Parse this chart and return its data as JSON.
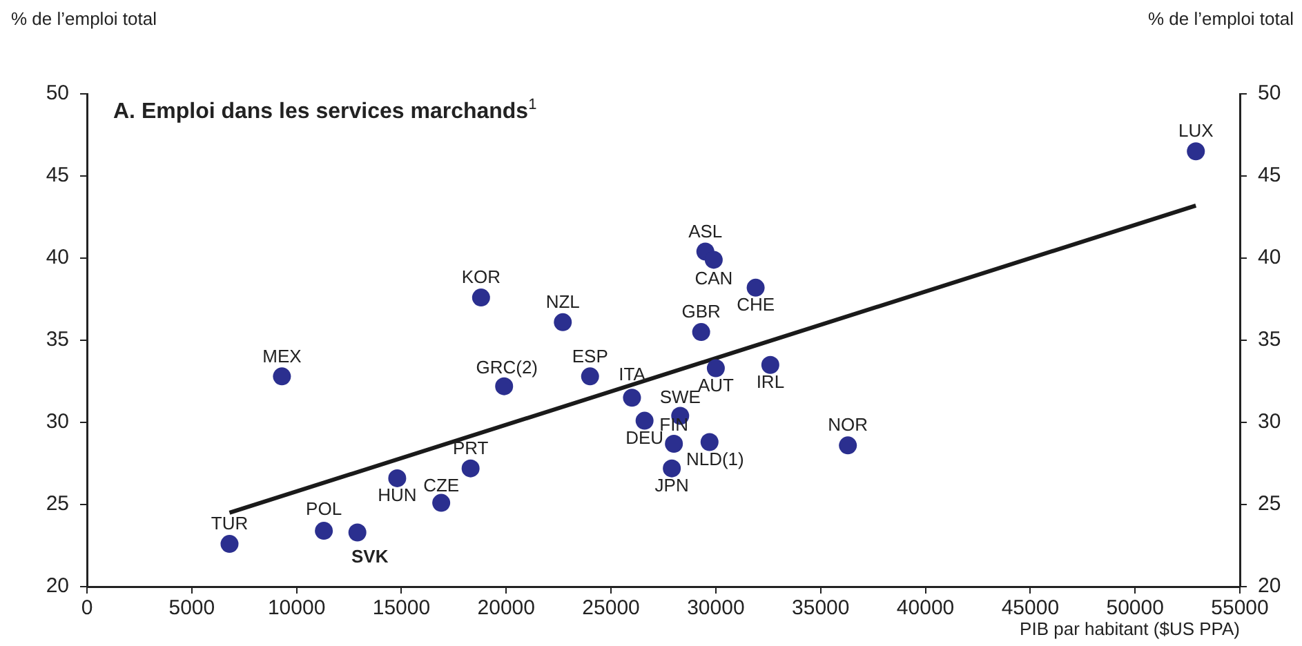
{
  "chart_data": {
    "type": "scatter",
    "title": "A. Emploi dans les services marchands$^{1}$",
    "xlabel": "PIB par habitant ($US PPA)",
    "ylabel": "% de l’emploi total",
    "y2label": "% de l’emploi total",
    "xlim": [
      0,
      55000
    ],
    "xticks": [
      0,
      5000,
      10000,
      15000,
      20000,
      25000,
      30000,
      35000,
      40000,
      45000,
      50000,
      55000
    ],
    "ylim": [
      20,
      50
    ],
    "yticks": [
      20,
      25,
      30,
      35,
      40,
      45,
      50
    ],
    "y2lim": [
      20,
      50
    ],
    "y2ticks": [
      20,
      25,
      30,
      35,
      40,
      45,
      50
    ],
    "grid": false,
    "legend": false,
    "marker": "circle",
    "series": [
      {
        "type": "scatter",
        "color": "#2b2f8f",
        "x": [
          6800,
          11300,
          12900,
          14800,
          16900,
          18300,
          9300,
          18800,
          19900,
          22700,
          24000,
          26000,
          26600,
          28300,
          28000,
          27900,
          29700,
          29300,
          30000,
          29500,
          29900,
          31900,
          32600,
          36300,
          52900
        ],
        "values": [
          22.6,
          23.4,
          23.3,
          26.6,
          25.1,
          27.2,
          32.8,
          37.6,
          32.2,
          36.1,
          32.8,
          31.5,
          30.1,
          30.4,
          28.7,
          27.2,
          28.8,
          35.5,
          33.3,
          40.4,
          39.9,
          38.2,
          33.5,
          28.6,
          46.5
        ]
      },
      {
        "type": "line",
        "color": "#1a1a1a",
        "marker": "none",
        "x": [
          6800,
          52900
        ],
        "values": [
          24.5,
          43.2
        ]
      }
    ],
    "annotations": [
      {
        "text": "TUR",
        "x": 6800,
        "y": 22.6
      },
      {
        "text": "POL",
        "x": 11300,
        "y": 23.4
      },
      {
        "text": "SVK",
        "x": 12900,
        "y": 23.3
      },
      {
        "text": "HUN",
        "x": 14800,
        "y": 26.6
      },
      {
        "text": "CZE",
        "x": 16900,
        "y": 25.1
      },
      {
        "text": "PRT",
        "x": 18300,
        "y": 27.2
      },
      {
        "text": "MEX",
        "x": 9300,
        "y": 32.8
      },
      {
        "text": "KOR",
        "x": 18800,
        "y": 37.6
      },
      {
        "text": "GRC(2)",
        "x": 19900,
        "y": 32.2
      },
      {
        "text": "NZL",
        "x": 22700,
        "y": 36.1
      },
      {
        "text": "ESP",
        "x": 24000,
        "y": 32.8
      },
      {
        "text": "ITA",
        "x": 26000,
        "y": 31.5
      },
      {
        "text": "DEU",
        "x": 26600,
        "y": 30.1
      },
      {
        "text": "SWE",
        "x": 28300,
        "y": 30.4
      },
      {
        "text": "FIN",
        "x": 28000,
        "y": 28.7
      },
      {
        "text": "JPN",
        "x": 27900,
        "y": 27.2
      },
      {
        "text": "NLD(1)",
        "x": 29700,
        "y": 28.8
      },
      {
        "text": "GBR",
        "x": 29300,
        "y": 35.5
      },
      {
        "text": "AUT",
        "x": 30000,
        "y": 33.3
      },
      {
        "text": "ASL",
        "x": 29500,
        "y": 40.4
      },
      {
        "text": "CAN",
        "x": 29900,
        "y": 39.9
      },
      {
        "text": "CHE",
        "x": 31900,
        "y": 38.2
      },
      {
        "text": "IRL",
        "x": 32600,
        "y": 33.5
      },
      {
        "text": "NOR",
        "x": 36300,
        "y": 28.6
      },
      {
        "text": "LUX",
        "x": 52900,
        "y": 46.5
      }
    ]
  }
}
